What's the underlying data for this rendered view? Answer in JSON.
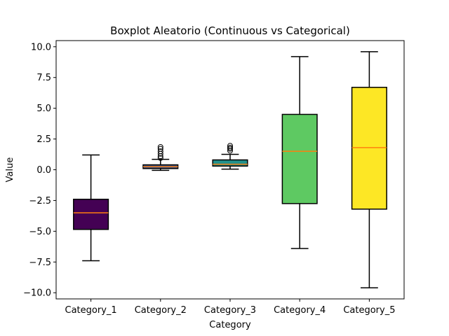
{
  "chart_data": {
    "type": "boxplot",
    "title": "Boxplot Aleatorio (Continuous vs Categorical)",
    "xlabel": "Category",
    "ylabel": "Value",
    "ylim": [
      -10.5,
      10.5
    ],
    "yticks": [
      -10.0,
      -7.5,
      -5.0,
      -2.5,
      0.0,
      2.5,
      5.0,
      7.5,
      10.0
    ],
    "ytick_labels": [
      "−10.0",
      "−7.5",
      "−5.0",
      "−2.5",
      "0.0",
      "2.5",
      "5.0",
      "7.5",
      "10.0"
    ],
    "grid": false,
    "median_color": "#ff7f0e",
    "categories": [
      "Category_1",
      "Category_2",
      "Category_3",
      "Category_4",
      "Category_5"
    ],
    "boxes": [
      {
        "category": "Category_1",
        "whisker_low": -7.4,
        "q1": -4.85,
        "median": -3.5,
        "q3": -2.4,
        "whisker_high": 1.2,
        "fliers": [],
        "color": "#440154"
      },
      {
        "category": "Category_2",
        "whisker_low": -0.05,
        "q1": 0.1,
        "median": 0.25,
        "q3": 0.4,
        "whisker_high": 0.85,
        "fliers": [
          0.95,
          1.1,
          1.3,
          1.5,
          1.7,
          1.85
        ],
        "color": "#3b528b"
      },
      {
        "category": "Category_3",
        "whisker_low": 0.05,
        "q1": 0.3,
        "median": 0.45,
        "q3": 0.8,
        "whisker_high": 1.25,
        "fliers": [
          1.55,
          1.7,
          1.8,
          1.95
        ],
        "color": "#21918c"
      },
      {
        "category": "Category_4",
        "whisker_low": -6.4,
        "q1": -2.75,
        "median": 1.5,
        "q3": 4.5,
        "whisker_high": 9.2,
        "fliers": [],
        "color": "#5ec962"
      },
      {
        "category": "Category_5",
        "whisker_low": -9.6,
        "q1": -3.2,
        "median": 1.8,
        "q3": 6.7,
        "whisker_high": 9.6,
        "fliers": [],
        "color": "#fde725"
      }
    ]
  }
}
